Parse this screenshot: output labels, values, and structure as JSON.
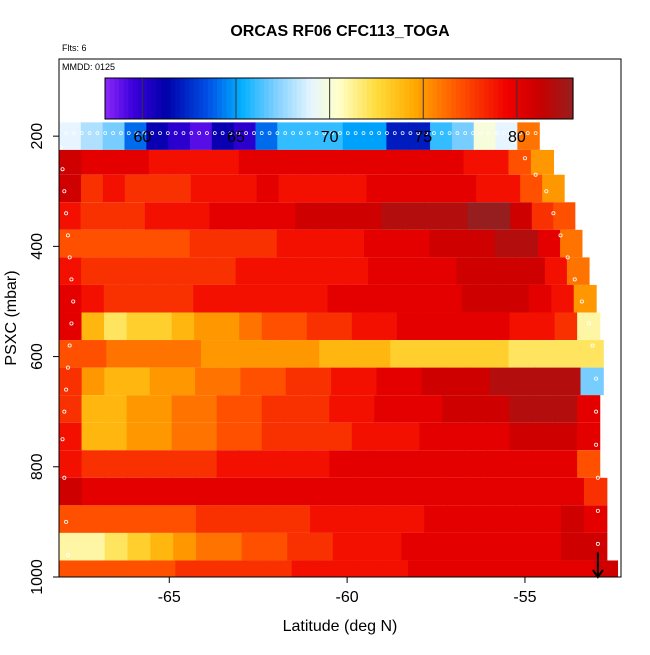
{
  "chart_data": {
    "type": "heatmap",
    "title": "ORCAS RF06 CFC113_TOGA",
    "annotations": [
      "Flts: 6",
      "MMDD: 0125"
    ],
    "xlabel": "Latitude (deg N)",
    "ylabel": "PSXC (mbar)",
    "xlim": [
      -68.1,
      -52.3
    ],
    "ylim": [
      1000,
      60
    ],
    "x_ticks": [
      -65,
      -60,
      -55
    ],
    "x_tick_labels": [
      "-65",
      "-60",
      "-55"
    ],
    "y_ticks": [
      200,
      400,
      600,
      800,
      1000
    ],
    "y_tick_labels": [
      "200",
      "400",
      "600",
      "800",
      "1000"
    ],
    "colorbar": {
      "range": [
        58,
        83
      ],
      "ticks": [
        60,
        65,
        70,
        75,
        80
      ],
      "tick_labels": [
        "60",
        "65",
        "70",
        "75",
        "80"
      ],
      "placement": "top-inside"
    },
    "bands": [
      {
        "p_top": 175,
        "p_bottom": 225,
        "x_end": -54.6,
        "values": [
          69,
          68,
          67,
          64,
          61,
          60,
          59,
          61,
          60,
          64,
          66,
          66,
          66,
          65,
          65,
          62,
          62,
          66,
          67,
          70,
          69,
          76
        ]
      },
      {
        "p_top": 225,
        "p_bottom": 270,
        "x_end": -54.2,
        "values": [
          81,
          80,
          80,
          80,
          79,
          79,
          79,
          79,
          80,
          80,
          80,
          80,
          80,
          80,
          80,
          80,
          80,
          80,
          79,
          79,
          77,
          75
        ]
      },
      {
        "p_top": 270,
        "p_bottom": 320,
        "x_end": -53.9,
        "values": [
          81,
          78,
          79,
          78,
          78,
          78,
          79,
          79,
          79,
          80,
          79,
          79,
          79,
          79,
          80,
          80,
          80,
          80,
          80,
          79,
          79,
          77,
          75
        ]
      },
      {
        "p_top": 320,
        "p_bottom": 370,
        "x_end": -53.6,
        "values": [
          79,
          78,
          78,
          78,
          79,
          79,
          79,
          80,
          80,
          80,
          80,
          81,
          81,
          81,
          81,
          82,
          82,
          82,
          82,
          83,
          83,
          81,
          78,
          77
        ]
      },
      {
        "p_top": 370,
        "p_bottom": 420,
        "x_end": -53.4,
        "values": [
          77,
          77,
          77,
          77,
          77,
          77,
          78,
          78,
          78,
          78,
          79,
          79,
          79,
          79,
          80,
          80,
          80,
          81,
          81,
          81,
          82,
          82,
          80,
          76
        ]
      },
      {
        "p_top": 420,
        "p_bottom": 470,
        "x_end": -53.2,
        "values": [
          79,
          78,
          78,
          78,
          78,
          78,
          78,
          78,
          79,
          79,
          79,
          79,
          79,
          79,
          80,
          80,
          80,
          80,
          81,
          81,
          81,
          81,
          79,
          76
        ]
      },
      {
        "p_top": 470,
        "p_bottom": 520,
        "x_end": -53.0,
        "values": [
          80,
          79,
          78,
          78,
          78,
          78,
          79,
          79,
          79,
          79,
          79,
          79,
          80,
          80,
          80,
          80,
          80,
          80,
          81,
          81,
          81,
          80,
          79,
          75
        ]
      },
      {
        "p_top": 520,
        "p_bottom": 570,
        "x_end": -52.9,
        "values": [
          80,
          74,
          72,
          73,
          73,
          74,
          75,
          75,
          76,
          77,
          77,
          78,
          78,
          79,
          79,
          80,
          80,
          80,
          80,
          80,
          79,
          79,
          78,
          71
        ]
      },
      {
        "p_top": 570,
        "p_bottom": 620,
        "x_end": -52.8,
        "values": [
          77,
          77,
          76,
          76,
          76,
          76,
          75,
          75,
          75,
          75,
          75,
          74,
          74,
          74,
          73,
          73,
          73,
          73,
          73,
          72,
          72,
          72,
          72
        ]
      },
      {
        "p_top": 620,
        "p_bottom": 670,
        "x_end": -52.8,
        "values": [
          78,
          75,
          74,
          74,
          75,
          75,
          76,
          76,
          77,
          77,
          78,
          78,
          79,
          79,
          80,
          80,
          81,
          81,
          81,
          82,
          82,
          82,
          82,
          67
        ]
      },
      {
        "p_top": 670,
        "p_bottom": 720,
        "x_end": -52.9,
        "values": [
          78,
          74,
          74,
          75,
          75,
          76,
          76,
          77,
          77,
          78,
          78,
          78,
          79,
          79,
          80,
          80,
          80,
          81,
          81,
          81,
          82,
          82,
          82,
          80
        ]
      },
      {
        "p_top": 720,
        "p_bottom": 770,
        "x_end": -52.9,
        "values": [
          79,
          74,
          74,
          75,
          75,
          76,
          76,
          77,
          77,
          78,
          78,
          78,
          78,
          79,
          79,
          79,
          80,
          80,
          80,
          80,
          81,
          81,
          81,
          80
        ]
      },
      {
        "p_top": 770,
        "p_bottom": 820,
        "x_end": -52.9,
        "values": [
          79,
          78,
          78,
          78,
          78,
          78,
          78,
          79,
          79,
          79,
          79,
          79,
          80,
          80,
          80,
          80,
          80,
          80,
          80,
          80,
          80,
          80,
          80,
          77
        ]
      },
      {
        "p_top": 820,
        "p_bottom": 870,
        "x_end": -52.7,
        "values": [
          81,
          80,
          80,
          80,
          80,
          80,
          80,
          80,
          80,
          80,
          80,
          80,
          80,
          80,
          80,
          80,
          80,
          80,
          80,
          80,
          80,
          80,
          80,
          78
        ]
      },
      {
        "p_top": 870,
        "p_bottom": 920,
        "x_end": -52.7,
        "values": [
          77,
          77,
          77,
          77,
          77,
          77,
          78,
          78,
          78,
          78,
          78,
          79,
          79,
          79,
          79,
          79,
          80,
          80,
          80,
          80,
          80,
          80,
          81,
          80
        ]
      },
      {
        "p_top": 920,
        "p_bottom": 970,
        "x_end": -52.7,
        "values": [
          71,
          71,
          72,
          73,
          74,
          75,
          76,
          76,
          77,
          77,
          78,
          78,
          79,
          79,
          79,
          80,
          80,
          80,
          80,
          80,
          80,
          80,
          81,
          81
        ]
      },
      {
        "p_top": 970,
        "p_bottom": 1010,
        "x_end": -52.4,
        "values": [
          77,
          77,
          77,
          77,
          77,
          78,
          78,
          78,
          78,
          78,
          79,
          79,
          79,
          79,
          79,
          80,
          80,
          80,
          80,
          80,
          80,
          80,
          80,
          81
        ]
      }
    ],
    "flight_track": {
      "descent_lats": [
        -68.05,
        -68.0,
        -67.95,
        -67.9,
        -67.85,
        -67.8,
        -67.75,
        -67.7,
        -67.75,
        -67.8,
        -67.85,
        -67.9,
        -67.95,
        -68.0,
        -67.95,
        -67.9,
        -67.85
      ],
      "descent_press": [
        220,
        260,
        300,
        340,
        380,
        420,
        460,
        500,
        540,
        580,
        620,
        660,
        700,
        750,
        820,
        900,
        960
      ],
      "steps_lats": [
        -55.3,
        -55.0,
        -54.7,
        -54.4,
        -54.2,
        -54.0,
        -53.8,
        -53.6,
        -53.4,
        -53.2,
        -53.1,
        -53.0,
        -53.0,
        -53.0,
        -52.95,
        -52.95,
        -52.95
      ],
      "steps_press": [
        210,
        240,
        270,
        300,
        340,
        380,
        420,
        460,
        500,
        540,
        580,
        640,
        700,
        760,
        820,
        880,
        940
      ],
      "arrow_lat": -52.95,
      "arrow_press": [
        955,
        1000
      ]
    }
  }
}
